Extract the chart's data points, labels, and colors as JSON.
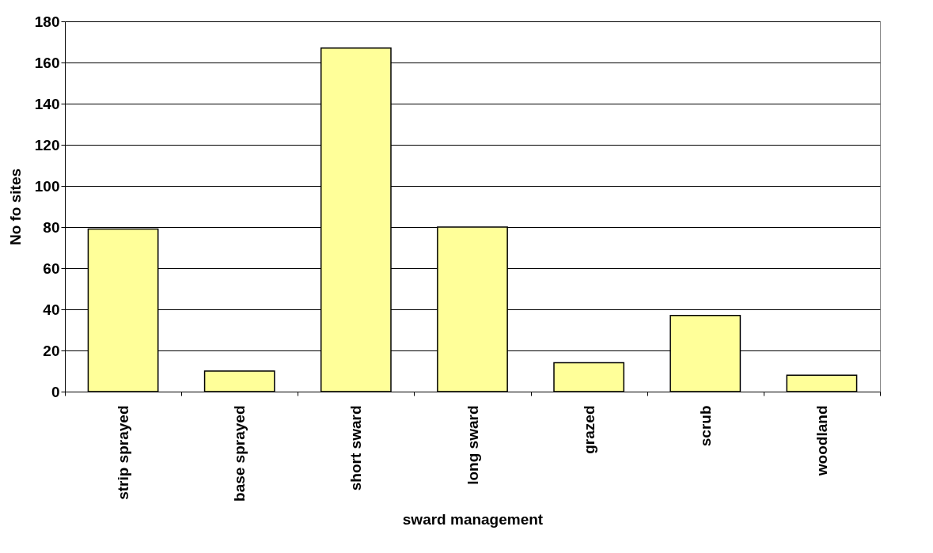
{
  "chart_data": {
    "type": "bar",
    "xlabel": "sward management",
    "ylabel": "No fo sites",
    "categories": [
      "strip sprayed",
      "base sprayed",
      "short sward",
      "long sward",
      "grazed",
      "scrub",
      "woodland"
    ],
    "values": [
      79,
      10,
      167,
      80,
      14,
      37,
      8
    ],
    "color": "#ffff99",
    "ylim": [
      0,
      180
    ],
    "yticks": [
      0,
      20,
      40,
      60,
      80,
      100,
      120,
      140,
      160,
      180
    ],
    "grid": "y"
  }
}
